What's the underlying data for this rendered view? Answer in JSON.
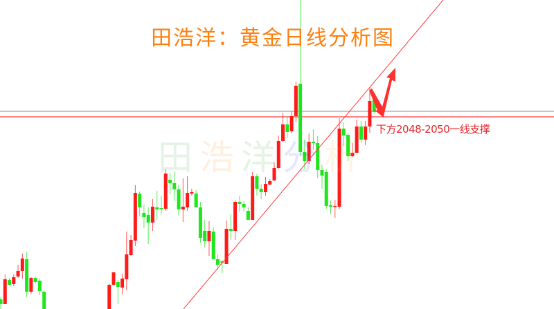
{
  "title": "田浩洋：黄金日线分析图",
  "watermark": [
    "田",
    "浩",
    "洋",
    "分",
    "析"
  ],
  "annotation": "下方2048-2050一线支撑",
  "colors": {
    "up": "#ff1a1a",
    "down": "#1ee61e",
    "title": "#ff7f0e",
    "support_line": "#ff3b3b",
    "resistance_line": "#9aa3b5",
    "trendline": "#ff3b3b",
    "arrow": "#ff3030",
    "annotation": "#e8242b"
  },
  "chart_data": {
    "type": "candlestick",
    "title": "田浩洋：黄金日线分析图",
    "xlabel": "",
    "ylabel": "",
    "axes_visible": false,
    "grid": false,
    "ylim": [
      1910,
      2133.5
    ],
    "xlim": [
      0,
      127
    ],
    "candle_fields": [
      "index",
      "open",
      "high",
      "low",
      "close"
    ],
    "candles": [
      [
        0,
        1917,
        1918.5,
        1910,
        1913.5
      ],
      [
        1,
        1913.5,
        1935,
        1913.5,
        1931.5
      ],
      [
        2,
        1931,
        1932.5,
        1927,
        1927.5
      ],
      [
        3,
        1928,
        1935,
        1926.5,
        1933
      ],
      [
        4,
        1933.5,
        1942,
        1932.5,
        1937.5
      ],
      [
        5,
        1937.5,
        1950,
        1932,
        1946.5
      ],
      [
        6,
        1946,
        1951.5,
        1918.5,
        1922.5
      ],
      [
        7,
        1922.5,
        1933,
        1921,
        1932.5
      ],
      [
        8,
        1932.5,
        1933.5,
        1928.5,
        1929.5
      ],
      [
        9,
        1930.5,
        1932,
        1920,
        1923
      ],
      [
        10,
        1922.5,
        1923.5,
        1903,
        1905
      ],
      [
        25,
        1908.5,
        1928,
        1906,
        1927.5
      ],
      [
        26,
        1927.5,
        1937,
        1927,
        1936.5
      ],
      [
        27,
        1929.5,
        1931,
        1913.5,
        1926
      ],
      [
        28,
        1925.5,
        1935.5,
        1920.5,
        1932
      ],
      [
        29,
        1931.5,
        1966,
        1923.5,
        1949.5
      ],
      [
        30,
        1949,
        1963.5,
        1948.5,
        1960
      ],
      [
        31,
        1959.5,
        1999.5,
        1955.5,
        1994
      ],
      [
        32,
        1993.5,
        1995,
        1977,
        1983.5
      ],
      [
        33,
        1979.5,
        1985.5,
        1968.5,
        1976.5
      ],
      [
        34,
        1978,
        1983.5,
        1957,
        1972.5
      ],
      [
        35,
        1972.5,
        1989.5,
        1966.5,
        1984
      ],
      [
        36,
        1983.5,
        1995.5,
        1974.5,
        1982
      ],
      [
        37,
        1983,
        1992,
        1978.5,
        1982.5
      ],
      [
        38,
        1982.5,
        2011,
        1981,
        2008
      ],
      [
        39,
        2003.5,
        2008.5,
        1993,
        2001
      ],
      [
        40,
        2001,
        2009.5,
        1988,
        1996.5
      ],
      [
        41,
        1996.5,
        2000,
        1977.5,
        1982
      ],
      [
        42,
        1982,
        2004.5,
        1973,
        1984
      ],
      [
        43,
        1983.5,
        2006,
        1981,
        1994
      ],
      [
        44,
        1993.5,
        1997,
        1992,
        1994.5
      ],
      [
        45,
        1993.5,
        1996,
        1983.5,
        1983.5
      ],
      [
        46,
        1983.5,
        1987.5,
        1958,
        1961.5
      ],
      [
        47,
        1966.5,
        1974.5,
        1954.5,
        1959
      ],
      [
        48,
        1959,
        1973.5,
        1948.5,
        1966.5
      ],
      [
        49,
        1966,
        1969,
        1946,
        1946
      ],
      [
        50,
        1946,
        1949.5,
        1938.5,
        1942
      ],
      [
        51,
        1944.5,
        1945.5,
        1936,
        1943.5
      ],
      [
        52,
        1942.5,
        1974,
        1942.5,
        1968
      ],
      [
        53,
        1968,
        1978.5,
        1960,
        1966.5
      ],
      [
        54,
        1966.5,
        1988.5,
        1960,
        1987.5
      ],
      [
        55,
        1987.5,
        1992,
        1980.5,
        1986
      ],
      [
        56,
        1986,
        1988,
        1980.5,
        1983.5
      ],
      [
        57,
        1981,
        1983.5,
        1974.5,
        1974.5
      ],
      [
        58,
        1974.5,
        2009,
        1974.5,
        2006
      ],
      [
        59,
        2006,
        2007.5,
        1992,
        1997
      ],
      [
        60,
        1997,
        2000,
        1989.5,
        1994.5
      ],
      [
        61,
        1994.5,
        2005.5,
        1992,
        2000.5
      ],
      [
        62,
        2000,
        2004,
        1999.5,
        2002.5
      ],
      [
        63,
        2003,
        2016,
        2002.5,
        2012
      ],
      [
        64,
        2012,
        2035.5,
        2011.5,
        2031.5
      ],
      [
        65,
        2031.5,
        2052,
        2031,
        2043.5
      ],
      [
        66,
        2043.5,
        2049.5,
        2033.5,
        2038
      ],
      [
        67,
        2038.5,
        2053,
        2037,
        2049.5
      ],
      [
        68,
        2049.5,
        2074.5,
        2045,
        2071.5
      ],
      [
        69,
        2073,
        2140,
        2021,
        2023.5
      ],
      [
        70,
        2023.5,
        2032.5,
        2011.5,
        2017
      ],
      [
        71,
        2017,
        2037,
        2015,
        2031
      ],
      [
        72,
        2031,
        2040,
        2025,
        2030
      ],
      [
        73,
        2030,
        2035,
        2004.5,
        2010.5
      ],
      [
        74,
        2010.5,
        2014.5,
        1997,
        2006.5
      ],
      [
        75,
        2009,
        2011,
        1982.5,
        1984.5
      ],
      [
        76,
        1985,
        1988.5,
        1978.5,
        1984
      ],
      [
        77,
        1984,
        1989,
        1976,
        1984.5
      ],
      [
        78,
        1984,
        2048,
        1982.5,
        2040.5
      ],
      [
        79,
        2040.5,
        2045,
        2028,
        2035.5
      ],
      [
        80,
        2036,
        2037.5,
        2017,
        2020.5
      ],
      [
        81,
        2020.5,
        2030,
        2020,
        2023
      ],
      [
        82,
        2023,
        2047,
        2023,
        2042
      ],
      [
        83,
        2042,
        2046,
        2030,
        2032.5
      ],
      [
        84,
        2032.5,
        2046,
        2028.5,
        2042
      ],
      [
        85,
        2042,
        2070,
        2037.5,
        2060.5
      ],
      [
        86,
        2061.5,
        2062.5,
        2051.5,
        2052.5
      ]
    ],
    "horizontal_lines": [
      {
        "price": 2053,
        "color": "#9aa3b5"
      },
      {
        "price": 2049,
        "color": "#ff3b3b"
      }
    ],
    "trendline": [
      [
        42.1,
        1910
      ],
      [
        101.9,
        2133.5
      ]
    ],
    "annotations": [
      {
        "text": "下方2048-2050一线支撑"
      }
    ]
  }
}
